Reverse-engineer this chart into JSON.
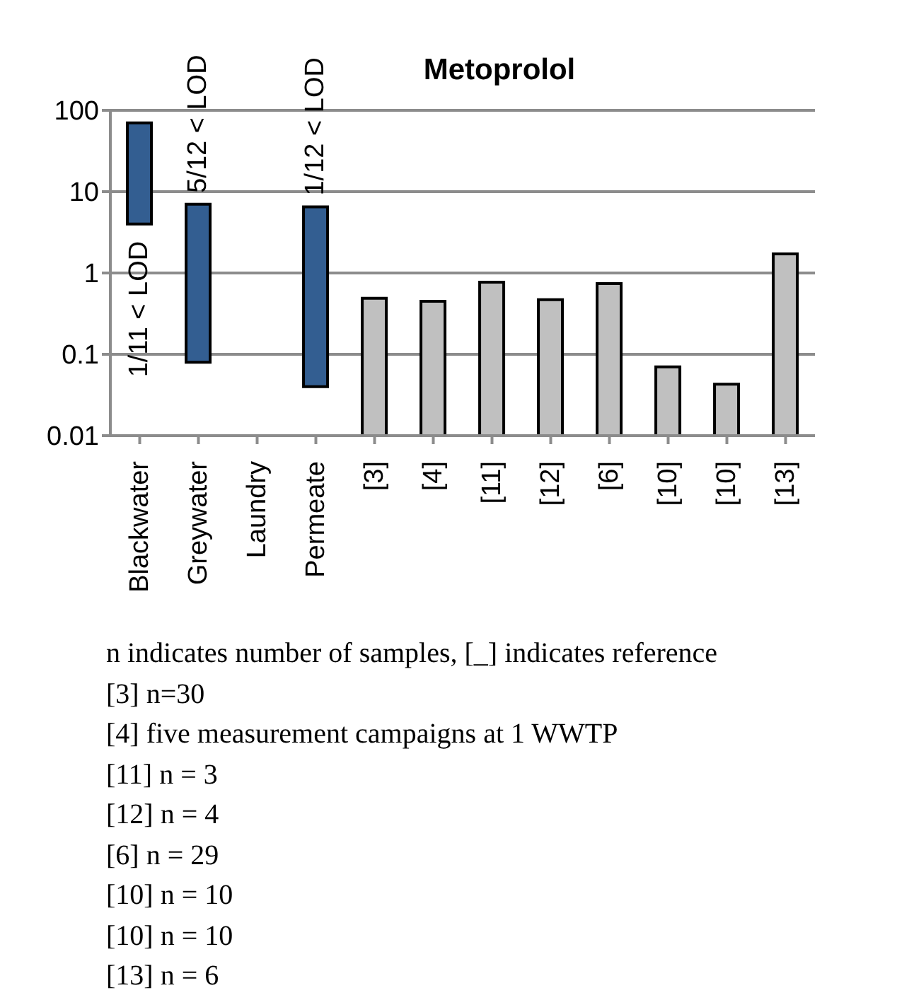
{
  "chart_data": {
    "type": "bar",
    "title": "Metoprolol",
    "categories": [
      "Blackwater",
      "Greywater",
      "Laundry",
      "Permeate",
      "[3]",
      "[4]",
      "[11]",
      "[12]",
      "[6]",
      "[10]",
      "[10]",
      "[13]"
    ],
    "base": [
      4,
      0.08,
      null,
      0.04,
      0.01,
      0.01,
      0.01,
      0.01,
      0.01,
      0.01,
      0.01,
      0.01
    ],
    "values": [
      66,
      6.92,
      null,
      6.46,
      0.48,
      0.44,
      0.76,
      0.46,
      0.73,
      0.06,
      0.033,
      1.71
    ],
    "colors": [
      "#335e91",
      "#335e91",
      "#335e91",
      "#335e91",
      "#c0c0c0",
      "#c0c0c0",
      "#c0c0c0",
      "#c0c0c0",
      "#c0c0c0",
      "#c0c0c0",
      "#c0c0c0",
      "#c0c0c0"
    ],
    "log": "y",
    "ylim": [
      0.01,
      100
    ],
    "yticks": [
      0.01,
      0.1,
      1,
      10,
      100
    ],
    "grid": "y",
    "legend": false,
    "annotations": [
      {
        "text": "1/11 < LOD",
        "x": "Blackwater",
        "y": 4
      },
      {
        "text": "5/12 < LOD",
        "x": "Greywater",
        "y": 7
      },
      {
        "text": "1/12 < LOD",
        "x": "Permeate",
        "y": 6.5
      },
      "n indicates number of samples, [_] indicates reference",
      "[3] n=30",
      "[4] five measurement campaigns at 1 WWTP",
      "[11] n = 3",
      "[12] n = 4",
      "[6] n = 29",
      "[10] n = 10",
      "[10] n = 10",
      "[13] n = 6"
    ]
  }
}
